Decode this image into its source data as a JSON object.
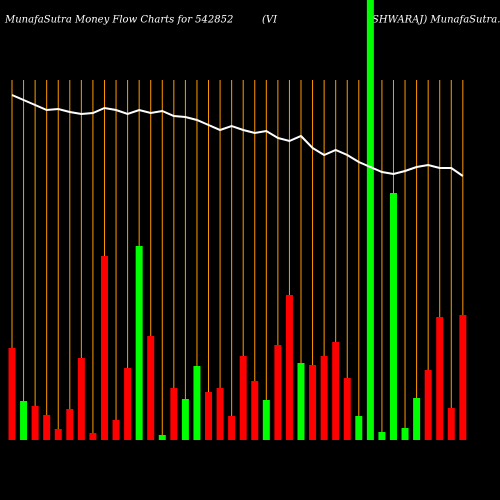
{
  "chart_data": {
    "type": "bar",
    "title": "MunafaSutra  Money Flow  Charts for 542852",
    "title_part2": "(VI",
    "title_part3": "SHWARAJ) MunafaSutra.com",
    "ylim": [
      0,
      440
    ],
    "grid_color": "#ff9900",
    "line_color": "#ffffff",
    "bar_colors": [
      "#ff0000",
      "#00ff00",
      "#ff0000",
      "#ff0000",
      "#ff0000",
      "#ff0000",
      "#ff0000",
      "#ff0000",
      "#ff0000",
      "#ff0000",
      "#ff0000",
      "#00ff00",
      "#ff0000",
      "#00ff00",
      "#ff0000",
      "#00ff00",
      "#00ff00",
      "#ff0000",
      "#ff0000",
      "#ff0000",
      "#ff0000",
      "#ff0000",
      "#00ff00",
      "#ff0000",
      "#ff0000",
      "#00ff00",
      "#ff0000",
      "#ff0000",
      "#ff0000",
      "#ff0000",
      "#00ff00",
      "#00ff00",
      "#00ff00",
      "#00ff00",
      "#00ff00",
      "#00ff00",
      "#ff0000",
      "#ff0000",
      "#ff0000",
      "#ff0000"
    ],
    "values": [
      92,
      39,
      34,
      25,
      11,
      31,
      82,
      7,
      184,
      20,
      72,
      194,
      104,
      5,
      52,
      41,
      74,
      48,
      52,
      24,
      84,
      59,
      40,
      95,
      145,
      77,
      75,
      84,
      98,
      62,
      24,
      440,
      8,
      247,
      12,
      42,
      70,
      123,
      32,
      125
    ],
    "line_values": [
      345,
      340,
      335,
      330,
      331,
      328,
      326,
      327,
      332,
      330,
      326,
      330,
      327,
      329,
      324,
      323,
      320,
      315,
      310,
      314,
      310,
      307,
      309,
      302,
      299,
      304,
      292,
      285,
      290,
      285,
      278,
      273,
      268,
      266,
      269,
      273,
      275,
      272,
      272,
      264
    ]
  }
}
